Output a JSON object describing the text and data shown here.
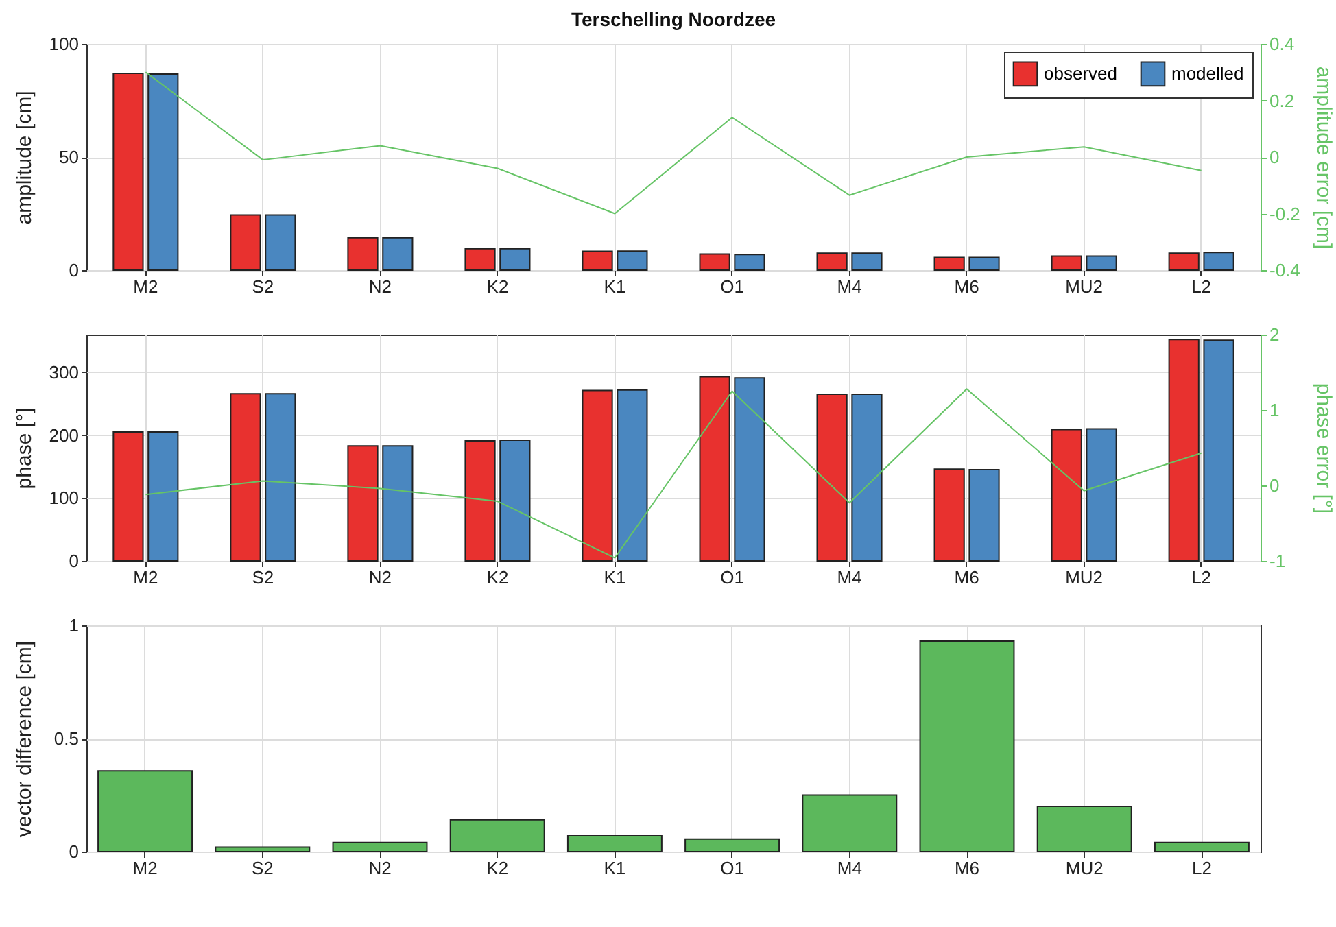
{
  "chart_data": [
    {
      "type": "bar",
      "title": "Terschelling Noordzee",
      "ylabel": "amplitude [cm]",
      "y2label": "amplitude error [cm]",
      "categories": [
        "M2",
        "S2",
        "N2",
        "K2",
        "K1",
        "O1",
        "M4",
        "M6",
        "MU2",
        "L2"
      ],
      "series": [
        {
          "name": "observed",
          "color": "#e8312f",
          "values": [
            87,
            24.4,
            14.3,
            9.5,
            8.3,
            7.1,
            7.5,
            5.6,
            6.2,
            7.5
          ]
        },
        {
          "name": "modelled",
          "color": "#4a87c0",
          "values": [
            86.7,
            24.4,
            14.3,
            9.5,
            8.4,
            6.9,
            7.5,
            5.6,
            6.2,
            7.8
          ]
        },
        {
          "type": "line",
          "axis": "y2",
          "color": "#66c466",
          "values": [
            0.3,
            -0.01,
            0.04,
            -0.04,
            -0.2,
            0.14,
            -0.135,
            0.0,
            0.036,
            -0.048
          ]
        }
      ],
      "ylim": [
        0,
        100
      ],
      "yticks": [
        0,
        50,
        100
      ],
      "y2lim": [
        -0.4,
        0.4
      ],
      "y2ticks": [
        -0.4,
        -0.2,
        0,
        0.2,
        0.4
      ],
      "grid": true,
      "legend": "top right"
    },
    {
      "type": "bar",
      "ylabel": "phase [°]",
      "y2label": "phase  error [°]",
      "categories": [
        "M2",
        "S2",
        "N2",
        "K2",
        "K1",
        "O1",
        "M4",
        "M6",
        "MU2",
        "L2"
      ],
      "series": [
        {
          "color": "#e8312f",
          "values": [
            205,
            266,
            183,
            191,
            271,
            293,
            265,
            146,
            209,
            352
          ]
        },
        {
          "color": "#4a87c0",
          "values": [
            205,
            266,
            183,
            192,
            272,
            291,
            265,
            145,
            210,
            351
          ]
        },
        {
          "type": "line",
          "axis": "y2",
          "color": "#66c466",
          "values": [
            -0.12,
            0.06,
            -0.04,
            -0.21,
            -0.96,
            1.25,
            -0.23,
            1.28,
            -0.07,
            0.43
          ]
        }
      ],
      "ylim": [
        0,
        360
      ],
      "yticks": [
        0,
        100,
        200,
        300
      ],
      "y2lim": [
        -1,
        2
      ],
      "y2ticks": [
        -1,
        0,
        1,
        2
      ],
      "grid": true
    },
    {
      "type": "bar",
      "ylabel": "vector difference [cm]",
      "categories": [
        "M2",
        "S2",
        "N2",
        "K2",
        "K1",
        "O1",
        "M4",
        "M6",
        "MU2",
        "L2"
      ],
      "values": [
        0.357,
        0.02,
        0.04,
        0.14,
        0.07,
        0.055,
        0.25,
        0.93,
        0.2,
        0.04
      ],
      "color": "#5cb85c",
      "ylim": [
        0,
        1
      ],
      "yticks": [
        0,
        0.5,
        1
      ],
      "grid": true
    }
  ]
}
